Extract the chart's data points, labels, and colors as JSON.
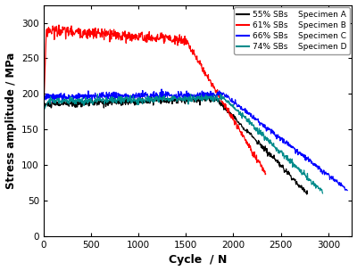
{
  "title": "",
  "xlabel": "Cycle  / N",
  "ylabel": "Stress amplitude / MPa",
  "xlim": [
    0,
    3250
  ],
  "ylim": [
    0,
    325
  ],
  "xticks": [
    0,
    500,
    1000,
    1500,
    2000,
    2500,
    3000
  ],
  "yticks": [
    0,
    50,
    100,
    150,
    200,
    250,
    300
  ],
  "legend_entries": [
    {
      "label": "55% SBs    Specimen A",
      "color": "#000000"
    },
    {
      "label": "61% SBs    Specimen B",
      "color": "#ff0000"
    },
    {
      "label": "66% SBs    Specimen C",
      "color": "#0000ff"
    },
    {
      "label": "74% SBs    Specimen D",
      "color": "#008B8B"
    }
  ],
  "background_color": "#ffffff",
  "series": {
    "A": {
      "color": "#000000",
      "start_x": 0,
      "start_y": 185,
      "flat_end_x": 1820,
      "flat_end_y": 193,
      "drop_start_x": 1820,
      "drop_start_y": 193,
      "drop_end_x": 2780,
      "drop_end_y": 60,
      "noise_flat": 2.5,
      "noise_drop": 2.0,
      "step": 4
    },
    "B": {
      "color": "#ff0000",
      "start_x": 0,
      "start_y": 170,
      "spike_x": 30,
      "spike_y": 290,
      "flat_end_x": 1500,
      "flat_end_y": 275,
      "drop_start_x": 1500,
      "drop_start_y": 275,
      "drop_end_x": 2340,
      "drop_end_y": 88,
      "noise_flat": 4.0,
      "noise_drop": 2.5,
      "step": 4
    },
    "C": {
      "color": "#0000ff",
      "start_x": 0,
      "start_y": 196,
      "flat_end_x": 1900,
      "flat_end_y": 199,
      "drop_start_x": 1900,
      "drop_start_y": 199,
      "drop_end_x": 3200,
      "drop_end_y": 65,
      "noise_flat": 2.5,
      "noise_drop": 2.0,
      "step": 4
    },
    "D": {
      "color": "#008B8B",
      "start_x": 0,
      "start_y": 176,
      "rise_end_x": 50,
      "rise_end_y": 190,
      "flat_end_x": 1900,
      "flat_end_y": 194,
      "drop_start_x": 1900,
      "drop_start_y": 194,
      "drop_end_x": 2940,
      "drop_end_y": 62,
      "noise_flat": 2.5,
      "noise_drop": 2.0,
      "step": 4
    }
  }
}
